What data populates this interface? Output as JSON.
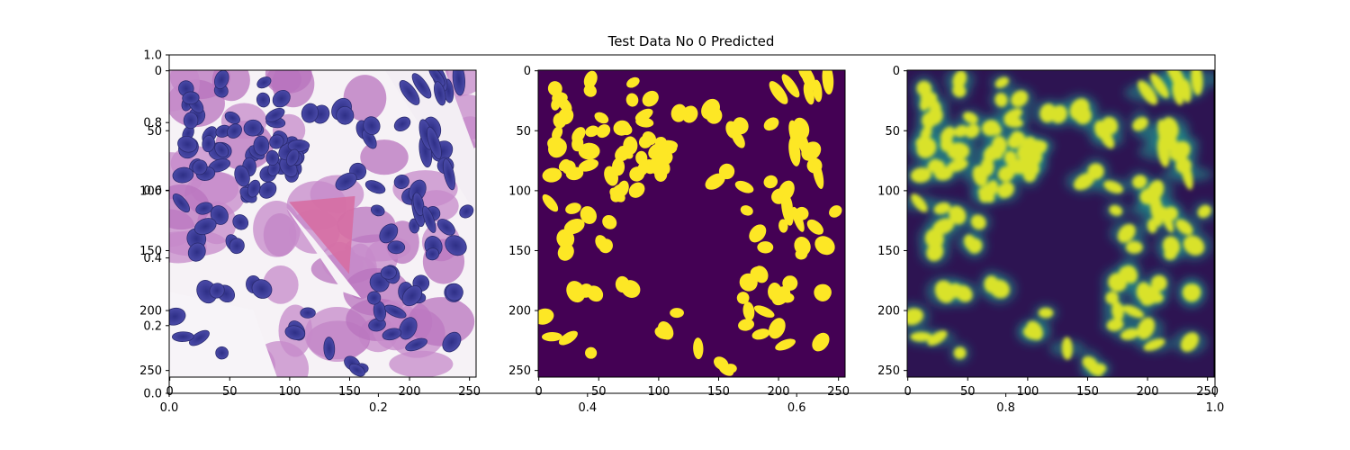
{
  "figure": {
    "title": "Test Data No 0 Predicted"
  },
  "chart_data": [
    {
      "type": "heatmap",
      "role": "background-axes",
      "xlim": [
        0.0,
        1.0
      ],
      "ylim": [
        0.0,
        1.0
      ],
      "xticks": [
        "0.0",
        "0.2",
        "0.4",
        "0.6",
        "0.8",
        "1.0"
      ],
      "yticks": [
        "0.0",
        "0.2",
        "0.4",
        "0.6",
        "0.8",
        "1.0"
      ],
      "grid": false
    },
    {
      "type": "heatmap",
      "image": "histology H&E tissue (input)",
      "xlim": [
        0,
        255
      ],
      "ylim": [
        255,
        0
      ],
      "xticks": [
        "0",
        "50",
        "100",
        "150",
        "200",
        "250"
      ],
      "yticks": [
        "0",
        "50",
        "100",
        "150",
        "200",
        "250"
      ],
      "colors": {
        "background": "#f6f2f6",
        "tissue": "#c27fc6",
        "nuclei": "#3b3b97"
      }
    },
    {
      "type": "heatmap",
      "image": "ground-truth nuclei mask",
      "xlim": [
        0,
        255
      ],
      "ylim": [
        255,
        0
      ],
      "xticks": [
        "0",
        "50",
        "100",
        "150",
        "200",
        "250"
      ],
      "yticks": [
        "0",
        "50",
        "100",
        "150",
        "200",
        "250"
      ],
      "colormap": "viridis",
      "colors": {
        "background": "#440154",
        "foreground": "#fde725"
      }
    },
    {
      "type": "heatmap",
      "image": "predicted nuclei probability",
      "xlim": [
        0,
        255
      ],
      "ylim": [
        255,
        0
      ],
      "xticks": [
        "0",
        "50",
        "100",
        "150",
        "200",
        "250"
      ],
      "yticks": [
        "0",
        "50",
        "100",
        "150",
        "200",
        "250"
      ],
      "colormap": "viridis",
      "colors": {
        "low": "#2d1452",
        "mid": "#21918c",
        "high": "#d9e22a"
      }
    }
  ]
}
